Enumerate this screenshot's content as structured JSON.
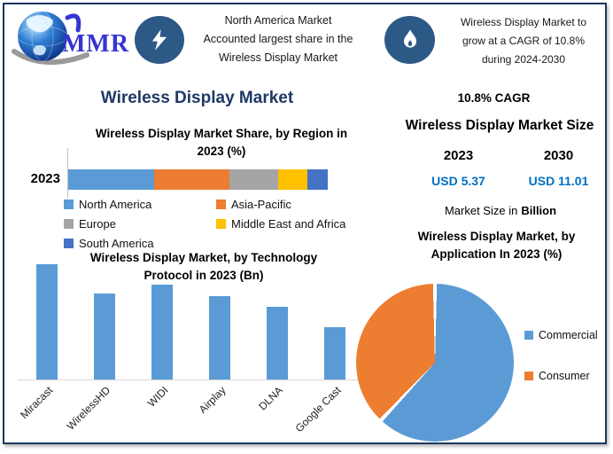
{
  "logo": {
    "text": "MMR"
  },
  "header": {
    "callout1": {
      "icon": "lightning-icon",
      "lines": [
        "North America Market",
        "Accounted largest share in the",
        "Wireless Display Market"
      ]
    },
    "callout2": {
      "icon": "flame-icon",
      "lines": [
        "Wireless Display Market to",
        "grow at a CAGR of 10.8%",
        "during 2024-2030"
      ]
    }
  },
  "main_title": "Wireless Display Market",
  "stats_panel": {
    "cagr_text": "10.8% CAGR",
    "size_title": "Wireless Display Market Size",
    "years": [
      "2023",
      "2030"
    ],
    "values": [
      "USD 5.37",
      "USD 11.01"
    ],
    "note_prefix": "Market Size in",
    "note_bold": "Billion"
  },
  "colors": {
    "accent_blue": "#5B9BD5",
    "accent_orange": "#ED7D31",
    "accent_gray": "#A5A5A5",
    "accent_yellow": "#FFC000",
    "accent_darkblue": "#4472C4",
    "navy_title": "#1F3864",
    "usd_blue": "#0070C0",
    "icon_circle": "#2D5986",
    "border_navy": "#17375E"
  },
  "chart_data": [
    {
      "type": "bar",
      "variant": "stacked-horizontal",
      "title": "Wireless Display Market Share, by Region in 2023 (%)",
      "title_lines": [
        "Wireless Display Market Share, by Region in",
        "2023 (%)"
      ],
      "categories": [
        "2023"
      ],
      "unit": "%",
      "xlim": [
        0,
        100
      ],
      "legend_position": "bottom",
      "series": [
        {
          "name": "North America",
          "value": 33,
          "color": "#5B9BD5"
        },
        {
          "name": "Asia-Pacific",
          "value": 29,
          "color": "#ED7D31"
        },
        {
          "name": "Europe",
          "value": 19,
          "color": "#A5A5A5"
        },
        {
          "name": "Middle East and Africa",
          "value": 11,
          "color": "#FFC000"
        },
        {
          "name": "South America",
          "value": 8,
          "color": "#4472C4"
        }
      ]
    },
    {
      "type": "bar",
      "variant": "vertical",
      "title": "Wireless Display Market, by Technology Protocol in 2023 (Bn)",
      "title_lines": [
        "Wireless Display Market, by Technology",
        "Protocol in 2023 (Bn)"
      ],
      "categories": [
        "Miracast",
        "WirelessHD",
        "WIDI",
        "Airplay",
        "DLNA",
        "Google Cast"
      ],
      "values": [
        1.3,
        0.97,
        1.07,
        0.94,
        0.82,
        0.59
      ],
      "unit": "Bn",
      "ylim": [
        0,
        1.3
      ],
      "bar_color": "#5B9BD5",
      "grid": false,
      "y_axis_visible": false
    },
    {
      "type": "pie",
      "title": "Wireless Display Market, by Application In 2023 (%)",
      "title_lines": [
        "Wireless Display Market, by",
        "Application In 2023 (%)"
      ],
      "labels": [
        "Commercial",
        "Consumer"
      ],
      "values": [
        62,
        38
      ],
      "colors": [
        "#5B9BD5",
        "#ED7D31"
      ],
      "start_angle_deg": 0,
      "direction": "clockwise",
      "legend_position": "right",
      "unit": "%"
    }
  ]
}
